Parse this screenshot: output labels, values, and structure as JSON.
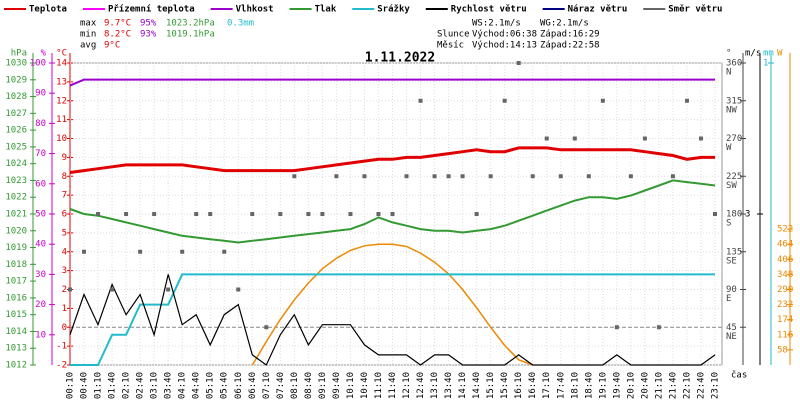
{
  "chart_data": {
    "type": "line",
    "title": "1.11.2022",
    "categories": [
      "00:10",
      "00:40",
      "01:10",
      "01:40",
      "02:10",
      "02:40",
      "03:10",
      "03:40",
      "04:10",
      "04:40",
      "05:10",
      "05:40",
      "06:10",
      "06:40",
      "07:10",
      "07:40",
      "08:10",
      "08:40",
      "09:10",
      "09:40",
      "10:10",
      "10:40",
      "11:10",
      "11:40",
      "12:10",
      "12:40",
      "13:10",
      "13:40",
      "14:10",
      "14:40",
      "15:10",
      "15:40",
      "16:10",
      "16:40",
      "17:10",
      "17:40",
      "18:10",
      "18:40",
      "19:10",
      "19:40",
      "20:10",
      "20:40",
      "21:10",
      "21:40",
      "22:10",
      "22:40",
      "23:10"
    ],
    "x_label": "čas",
    "axes": [
      {
        "label": "hPa",
        "side": "left",
        "color": "#339933",
        "lim": [
          1012,
          1030
        ],
        "ticks": [
          1012,
          1013,
          1014,
          1015,
          1016,
          1017,
          1018,
          1019,
          1020,
          1021,
          1022,
          1023,
          1024,
          1025,
          1026,
          1027,
          1028,
          1029,
          1030
        ]
      },
      {
        "label": "%",
        "side": "left",
        "color": "#cc00cc",
        "lim": [
          0,
          100
        ],
        "ticks": [
          10,
          20,
          30,
          40,
          50,
          60,
          70,
          80,
          90,
          100
        ]
      },
      {
        "label": "°C",
        "side": "left",
        "color": "#dd0000",
        "lim": [
          -2,
          14
        ],
        "ticks": [
          -2,
          -1,
          0,
          1,
          2,
          3,
          4,
          5,
          6,
          7,
          8,
          9,
          10,
          11,
          12,
          13,
          14
        ],
        "grid": true
      },
      {
        "label": "°",
        "side": "right",
        "color": "#444444",
        "lim": [
          0,
          360
        ],
        "ticks": [
          45,
          90,
          135,
          180,
          225,
          270,
          315,
          360
        ],
        "compass": [
          "NE",
          "E",
          "SE",
          "S",
          "SW",
          "W",
          "NW",
          "N"
        ]
      },
      {
        "label": "m/s",
        "side": "right",
        "color": "#000000",
        "lim": [
          0,
          6
        ],
        "ticks": [
          3
        ]
      },
      {
        "label": "mm",
        "side": "right",
        "color": "#22bbcc",
        "lim": [
          0,
          1
        ],
        "ticks": [
          1
        ]
      },
      {
        "label": "W",
        "side": "right",
        "color": "#ee8800",
        "lim": [
          0,
          1160
        ],
        "ticks": [
          58,
          116,
          174,
          232,
          290,
          348,
          406,
          464,
          522
        ]
      }
    ],
    "series": [
      {
        "name": "Teplota",
        "color": "#e00000",
        "axis": "°C",
        "values": [
          8.2,
          8.3,
          8.4,
          8.5,
          8.6,
          8.6,
          8.6,
          8.6,
          8.6,
          8.5,
          8.4,
          8.3,
          8.3,
          8.3,
          8.3,
          8.3,
          8.3,
          8.4,
          8.5,
          8.6,
          8.7,
          8.8,
          8.9,
          8.9,
          9.0,
          9.0,
          9.1,
          9.2,
          9.3,
          9.4,
          9.3,
          9.3,
          9.5,
          9.5,
          9.5,
          9.4,
          9.4,
          9.4,
          9.4,
          9.4,
          9.4,
          9.3,
          9.2,
          9.1,
          8.9,
          9.0,
          9.0
        ]
      },
      {
        "name": "Přízemní teplota",
        "color": "#ff00ff",
        "axis": "°C",
        "values": [
          null,
          null,
          null,
          null,
          null,
          null,
          null,
          null,
          null,
          null,
          null,
          null,
          null,
          null,
          null,
          null,
          null,
          null,
          null,
          null,
          null,
          null,
          null,
          null,
          null,
          null,
          null,
          null,
          null,
          null,
          null,
          null,
          null,
          null,
          null,
          null,
          null,
          null,
          null,
          null,
          null,
          null,
          null,
          null,
          null,
          null,
          null
        ]
      },
      {
        "name": "Vlhkost",
        "color": "#9900cc",
        "axis": "%",
        "values": [
          92.5,
          94.5,
          94.5,
          94.5,
          94.5,
          94.5,
          94.5,
          94.5,
          94.5,
          94.5,
          94.5,
          94.5,
          94.5,
          94.5,
          94.5,
          94.5,
          94.5,
          94.5,
          94.5,
          94.5,
          94.5,
          94.5,
          94.5,
          94.5,
          94.5,
          94.5,
          94.5,
          94.5,
          94.5,
          94.5,
          94.5,
          94.5,
          94.5,
          94.5,
          94.5,
          94.5,
          94.5,
          94.5,
          94.5,
          94.5,
          94.5,
          94.5,
          94.5,
          94.5,
          94.5,
          94.5,
          94.5
        ]
      },
      {
        "name": "Tlak",
        "color": "#339933",
        "axis": "hPa",
        "values": [
          1021.3,
          1021.0,
          1020.9,
          1020.7,
          1020.5,
          1020.3,
          1020.1,
          1019.9,
          1019.7,
          1019.6,
          1019.5,
          1019.4,
          1019.3,
          1019.4,
          1019.5,
          1019.6,
          1019.7,
          1019.8,
          1019.9,
          1020.0,
          1020.1,
          1020.4,
          1020.8,
          1020.5,
          1020.3,
          1020.1,
          1020.0,
          1020.0,
          1019.9,
          1020.0,
          1020.1,
          1020.3,
          1020.6,
          1020.9,
          1021.2,
          1021.5,
          1021.8,
          1022.0,
          1022.0,
          1021.9,
          1022.1,
          1022.4,
          1022.7,
          1023.0,
          1022.9,
          1022.8,
          1022.7
        ]
      },
      {
        "name": "Srážky",
        "color": "#22bbcc",
        "axis": "mm",
        "values": [
          0,
          0,
          0,
          0.1,
          0.1,
          0.2,
          0.2,
          0.2,
          0.3,
          0.3,
          0.3,
          0.3,
          0.3,
          0.3,
          0.3,
          0.3,
          0.3,
          0.3,
          0.3,
          0.3,
          0.3,
          0.3,
          0.3,
          0.3,
          0.3,
          0.3,
          0.3,
          0.3,
          0.3,
          0.3,
          0.3,
          0.3,
          0.3,
          0.3,
          0.3,
          0.3,
          0.3,
          0.3,
          0.3,
          0.3,
          0.3,
          0.3,
          0.3,
          0.3,
          0.3,
          0.3,
          0.3
        ]
      },
      {
        "name": "Rychlost větru",
        "color": "#000000",
        "axis": "m/s",
        "values": [
          0.6,
          1.4,
          0.8,
          1.6,
          1.0,
          1.4,
          0.6,
          1.8,
          0.8,
          1.0,
          0.4,
          1.0,
          1.2,
          0.2,
          0,
          0.6,
          1.0,
          0.4,
          0.8,
          0.8,
          0.8,
          0.4,
          0.2,
          0.2,
          0.2,
          0,
          0.2,
          0.2,
          0,
          0,
          0,
          0,
          0.2,
          0,
          0,
          0,
          0,
          0,
          0,
          0.2,
          0,
          0,
          0,
          0,
          0,
          0,
          0.2
        ]
      },
      {
        "name": "Náraz větru",
        "color": "#000080",
        "axis": "m/s",
        "values": [
          null,
          null,
          null,
          null,
          null,
          null,
          null,
          null,
          null,
          null,
          null,
          null,
          null,
          null,
          null,
          null,
          null,
          null,
          null,
          null,
          null,
          null,
          null,
          null,
          null,
          null,
          null,
          null,
          null,
          null,
          null,
          null,
          null,
          null,
          null,
          null,
          null,
          null,
          null,
          null,
          null,
          null,
          null,
          null,
          null,
          null,
          null
        ]
      },
      {
        "name": "Směr větru",
        "color": "#666666",
        "axis": "°",
        "marker": "square",
        "values": [
          90,
          135,
          180,
          90,
          180,
          135,
          180,
          90,
          135,
          180,
          180,
          135,
          90,
          180,
          45,
          180,
          225,
          180,
          180,
          225,
          180,
          225,
          180,
          180,
          225,
          315,
          225,
          225,
          225,
          180,
          225,
          315,
          360,
          225,
          270,
          225,
          270,
          225,
          315,
          45,
          225,
          270,
          45,
          225,
          315,
          270,
          180
        ]
      }
    ],
    "solar": {
      "color": "#ee8800",
      "axis": "W",
      "values": [
        null,
        null,
        null,
        null,
        null,
        null,
        null,
        null,
        null,
        null,
        null,
        null,
        null,
        0,
        90,
        175,
        250,
        315,
        370,
        410,
        440,
        458,
        464,
        464,
        455,
        430,
        395,
        350,
        290,
        220,
        145,
        75,
        20,
        0,
        null,
        null,
        null,
        null,
        null,
        null,
        null,
        null,
        null,
        null,
        null,
        null,
        null
      ]
    },
    "stats": [
      {
        "label": "max",
        "temp": "9.7°C",
        "hum": "95%",
        "press": "1023.2hPa",
        "rain": "0.3mm"
      },
      {
        "label": "min",
        "temp": "8.2°C",
        "hum": "93%",
        "press": "1019.1hPa"
      },
      {
        "label": "avg",
        "temp": "9°C"
      }
    ],
    "wind": [
      "WS:2.1m/s",
      "WG:2.1m/s"
    ],
    "sun": {
      "label": "Slunce",
      "rise": "Východ:06:38",
      "set": "Západ:16:29"
    },
    "moon": {
      "label": "Měsíc",
      "rise": "Východ:14:13",
      "set": "Západ:22:58"
    }
  }
}
